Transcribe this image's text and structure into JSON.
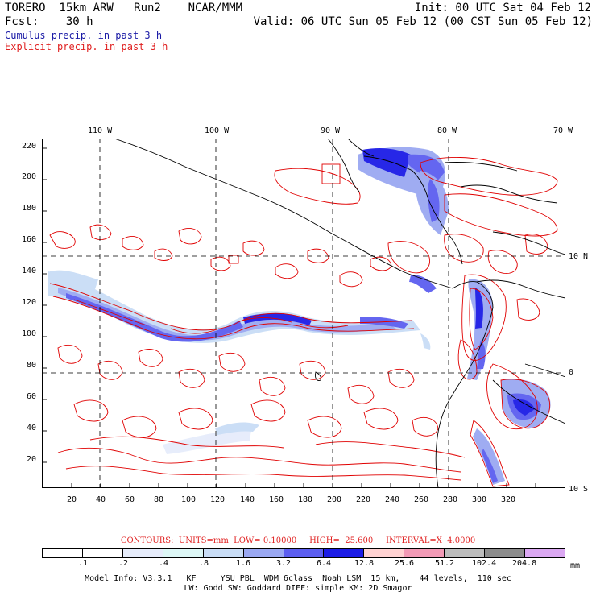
{
  "header": {
    "line1_left": "TORERO  15km ARW   Run2    NCAR/MMM",
    "line1_right": "Init: 00 UTC Sat 04 Feb 12",
    "line2_left": "Fcst:    30 h",
    "line2_right": "Valid: 06 UTC Sun 05 Feb 12 (00 CST Sun 05 Feb 12)"
  },
  "legend_lines": {
    "cumulus": "Cumulus precip. in past 3 h",
    "explicit": "Explicit precip. in past 3 h",
    "cumulus_color": "#1a1aa6",
    "explicit_color": "#e02020"
  },
  "map": {
    "lon_labels": [
      "110 W",
      "100 W",
      "90 W",
      "80 W",
      "70 W"
    ],
    "lat_labels": [
      "10 N",
      "0",
      "10 S"
    ],
    "y_ticks": [
      "220",
      "200",
      "180",
      "160",
      "140",
      "120",
      "100",
      "80",
      "60",
      "40",
      "20"
    ],
    "x_ticks": [
      "20",
      "40",
      "60",
      "80",
      "100",
      "120",
      "140",
      "160",
      "180",
      "200",
      "220",
      "240",
      "260",
      "280",
      "300",
      "320"
    ],
    "contour_color": "#e00000",
    "coast_color": "#000000"
  },
  "contours_line": "CONTOURS:  UNITS=mm  LOW= 0.10000     HIGH=  25.600     INTERVAL=X  4.0000",
  "colorbar": {
    "units": "mm",
    "labels": [
      ".1",
      ".2",
      ".4",
      ".8",
      "1.6",
      "3.2",
      "6.4",
      "12.8",
      "25.6",
      "51.2",
      "102.4",
      "204.8"
    ],
    "colors": [
      "#ffffff",
      "#ffffff",
      "#e6ecfb",
      "#ddf7f6",
      "#c9ddf6",
      "#9aa8f2",
      "#5c5ef0",
      "#1c1ce6",
      "#ffd2d2",
      "#f29ab6",
      "#bcbcbc",
      "#8c8c8c",
      "#dba8f2"
    ]
  },
  "model_info": {
    "line1": "Model Info: V3.3.1   KF     YSU PBL  WDM 6class  Noah LSM  15 km,    44 levels,  110 sec",
    "line2": "LW: Godd SW: Goddard DIFF: simple KM: 2D Smagor"
  }
}
